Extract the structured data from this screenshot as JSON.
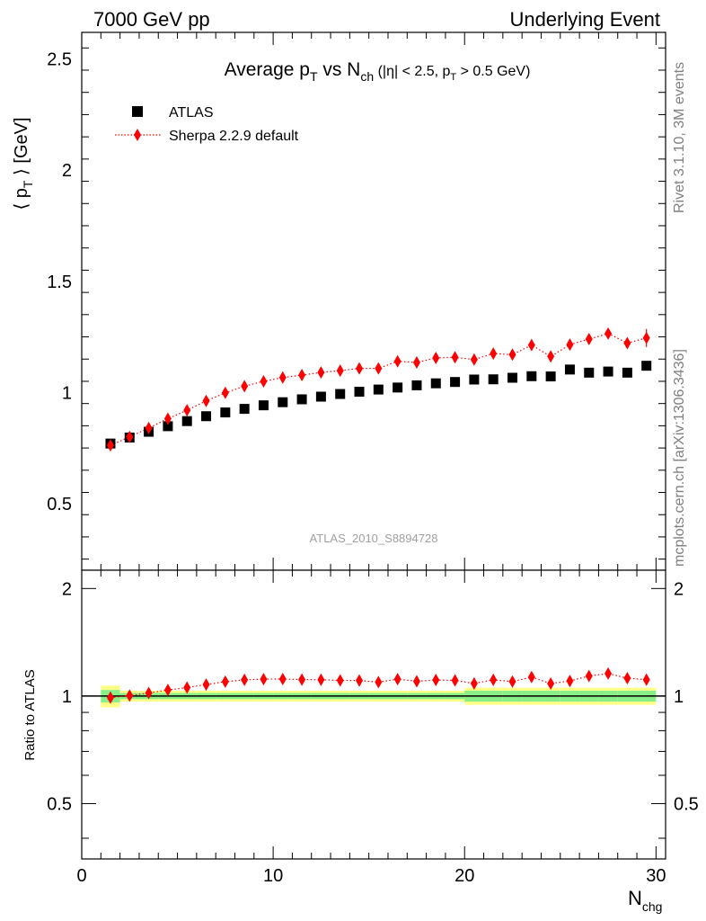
{
  "header": {
    "left": "7000 GeV pp",
    "right": "Underlying Event"
  },
  "side_labels": {
    "rivet": "Rivet 3.1.10,  3M events",
    "mcplots": "mcplots.cern.ch [arXiv:1306.3436]"
  },
  "chart_data": {
    "type": "scatter",
    "title": {
      "main": "Average p",
      "sub1": "T",
      "mid": " vs N",
      "sub2": "ch",
      "cond": " (|η| < 2.5, p",
      "sub3": "T",
      "cond2": " > 0.5 GeV)"
    },
    "analysis_id": "ATLAS_2010_S8894728",
    "xlabel": {
      "main": "N",
      "sub": "chg"
    },
    "ylabel": {
      "pre": "⟨ p",
      "sub": "T",
      "post": " ⟩ [GeV]"
    },
    "ratio_ylabel": "Ratio to ATLAS",
    "xlim": [
      0,
      30.5
    ],
    "ylim": [
      0.2,
      2.62
    ],
    "ratio_ylim": [
      0.35,
      2.25
    ],
    "x_ticks": [
      "0",
      "10",
      "20",
      "30"
    ],
    "y_ticks": [
      "0.5",
      "1",
      "1.5",
      "2",
      "2.5"
    ],
    "ratio_ticks": [
      "0.5",
      "1",
      "2"
    ],
    "x": [
      1.5,
      2.5,
      3.5,
      4.5,
      5.5,
      6.5,
      7.5,
      8.5,
      9.5,
      10.5,
      11.5,
      12.5,
      13.5,
      14.5,
      15.5,
      16.5,
      17.5,
      18.5,
      19.5,
      20.5,
      21.5,
      22.5,
      23.5,
      24.5,
      25.5,
      26.5,
      27.5,
      28.5,
      29.5
    ],
    "series": [
      {
        "name": "ATLAS",
        "color": "#000000",
        "marker": "square",
        "values": [
          0.77,
          0.797,
          0.823,
          0.848,
          0.871,
          0.893,
          0.91,
          0.926,
          0.942,
          0.956,
          0.969,
          0.981,
          0.993,
          1.003,
          1.013,
          1.022,
          1.032,
          1.041,
          1.047,
          1.058,
          1.059,
          1.066,
          1.073,
          1.072,
          1.103,
          1.089,
          1.094,
          1.089,
          1.12
        ]
      },
      {
        "name": "Sherpa 2.2.9 default",
        "color": "#ff0000",
        "marker": "diamond",
        "values": [
          0.762,
          0.8,
          0.84,
          0.882,
          0.92,
          0.962,
          0.998,
          1.028,
          1.05,
          1.067,
          1.078,
          1.09,
          1.098,
          1.108,
          1.108,
          1.14,
          1.135,
          1.155,
          1.158,
          1.148,
          1.175,
          1.17,
          1.213,
          1.162,
          1.215,
          1.24,
          1.265,
          1.222,
          1.245
        ]
      }
    ],
    "ratio_values": [
      0.99,
      1.003,
      1.02,
      1.04,
      1.056,
      1.077,
      1.097,
      1.11,
      1.115,
      1.116,
      1.112,
      1.111,
      1.106,
      1.105,
      1.094,
      1.115,
      1.1,
      1.109,
      1.106,
      1.085,
      1.11,
      1.098,
      1.13,
      1.084,
      1.102,
      1.138,
      1.156,
      1.122,
      1.111
    ]
  }
}
